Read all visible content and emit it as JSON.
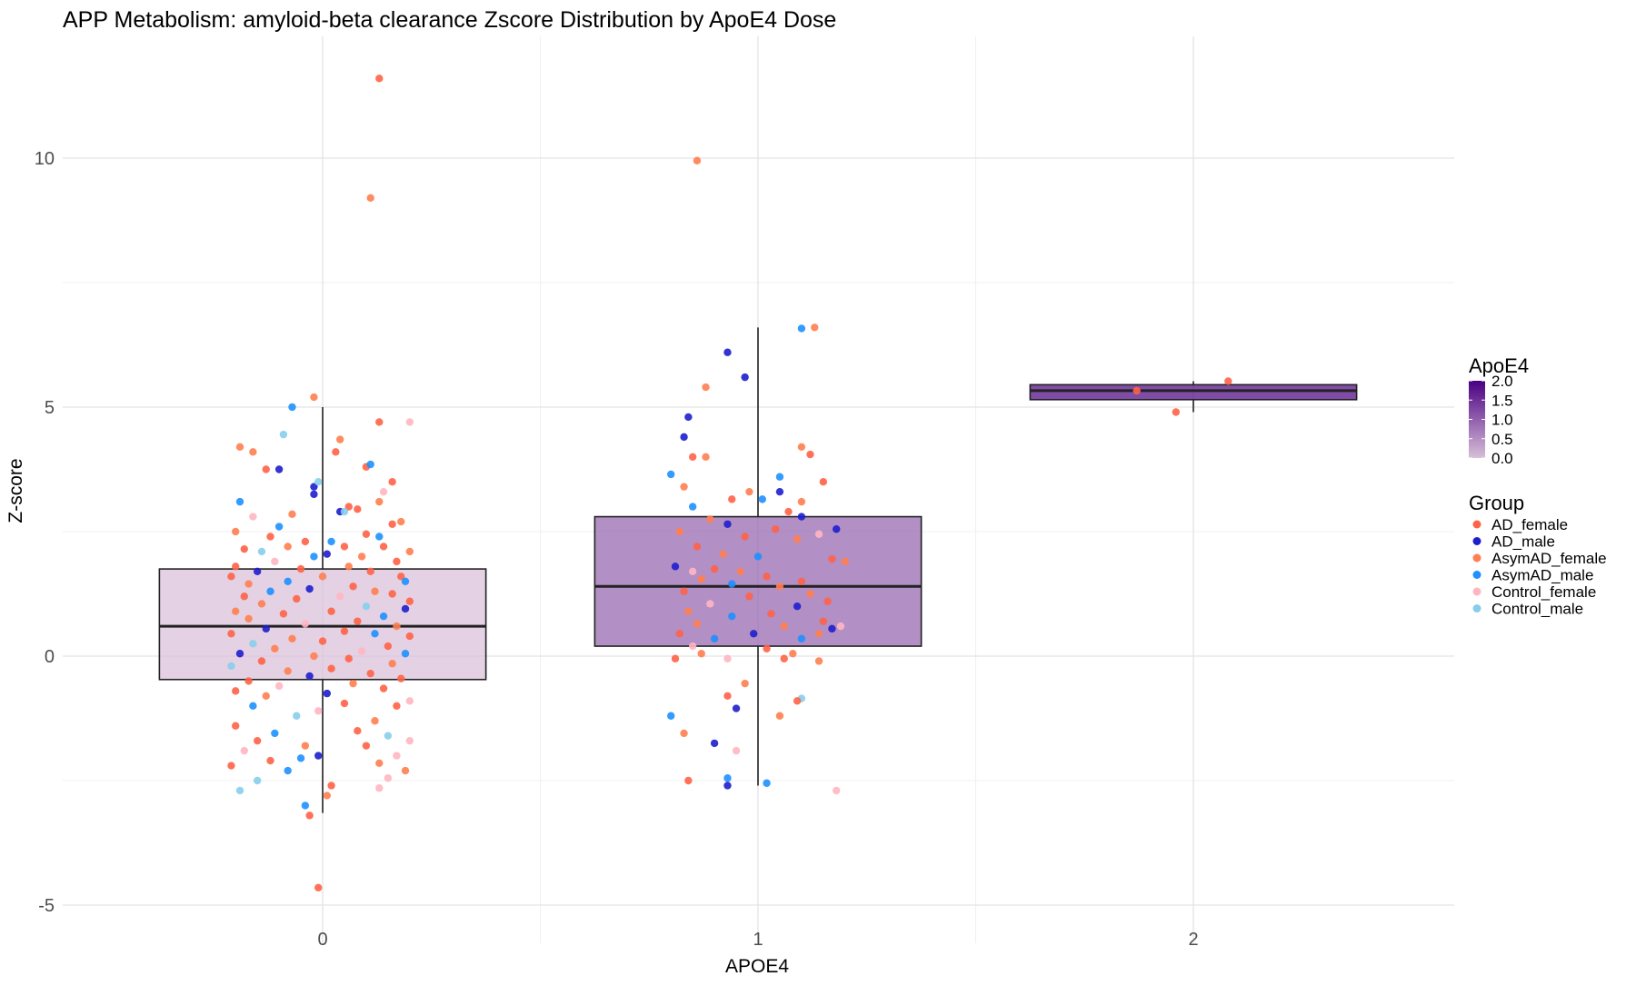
{
  "chart_data": {
    "type": "boxplot+jitter",
    "title": "APP Metabolism: amyloid-beta clearance Zscore Distribution by ApoE4 Dose",
    "xlabel": "APOE4",
    "ylabel": "Z-score",
    "x_categories": [
      "0",
      "1",
      "2"
    ],
    "y_ticks": [
      -5,
      0,
      5,
      10
    ],
    "ylim": [
      -5.6,
      12.3
    ],
    "grid": true,
    "fill_legend": {
      "title": "ApoE4",
      "ticks": [
        "0.0",
        "0.5",
        "1.0",
        "1.5",
        "2.0"
      ],
      "range": [
        0,
        2
      ],
      "low_color": "#D8BFD8",
      "high_color": "#4B0082"
    },
    "color_legend": {
      "title": "Group",
      "entries": [
        {
          "name": "AD_female",
          "color": "#FF6347"
        },
        {
          "name": "AD_male",
          "color": "#1E1ECD"
        },
        {
          "name": "AsymAD_female",
          "color": "#FF7F50"
        },
        {
          "name": "AsymAD_male",
          "color": "#1E90FF"
        },
        {
          "name": "Control_female",
          "color": "#FFB6C1"
        },
        {
          "name": "Control_male",
          "color": "#87CEEB"
        }
      ]
    },
    "boxes": [
      {
        "x": 0,
        "q1": -0.47,
        "median": 0.6,
        "q3": 1.75,
        "whisker_low": -3.15,
        "whisker_high": 5.0
      },
      {
        "x": 1,
        "q1": 0.2,
        "median": 1.4,
        "q3": 2.8,
        "whisker_low": -2.6,
        "whisker_high": 6.6
      },
      {
        "x": 2,
        "q1": 5.15,
        "median": 5.33,
        "q3": 5.45,
        "whisker_low": 4.9,
        "whisker_high": 5.52
      }
    ],
    "points_format": [
      "x",
      "z",
      "group_index"
    ],
    "points": [
      [
        0.13,
        11.6,
        0
      ],
      [
        0.11,
        9.2,
        2
      ],
      [
        -0.02,
        5.2,
        2
      ],
      [
        -0.07,
        5.0,
        3
      ],
      [
        -0.09,
        4.45,
        5
      ],
      [
        0.2,
        4.7,
        4
      ],
      [
        0.13,
        4.7,
        0
      ],
      [
        0.04,
        4.35,
        2
      ],
      [
        -0.19,
        4.2,
        2
      ],
      [
        0.03,
        4.1,
        0
      ],
      [
        -0.16,
        4.1,
        2
      ],
      [
        -0.13,
        3.75,
        0
      ],
      [
        -0.1,
        3.75,
        1
      ],
      [
        0.1,
        3.8,
        0
      ],
      [
        0.11,
        3.85,
        3
      ],
      [
        -0.02,
        3.4,
        1
      ],
      [
        -0.02,
        3.25,
        1
      ],
      [
        0.16,
        3.5,
        0
      ],
      [
        0.14,
        3.3,
        4
      ],
      [
        -0.01,
        3.5,
        5
      ],
      [
        -0.19,
        3.1,
        3
      ],
      [
        0.13,
        3.1,
        2
      ],
      [
        0.06,
        3.0,
        0
      ],
      [
        0.08,
        2.95,
        0
      ],
      [
        0.04,
        2.9,
        1
      ],
      [
        0.05,
        2.9,
        5
      ],
      [
        -0.07,
        2.85,
        2
      ],
      [
        -0.16,
        2.8,
        4
      ],
      [
        0.18,
        2.7,
        2
      ],
      [
        0.16,
        2.65,
        0
      ],
      [
        -0.1,
        2.6,
        3
      ],
      [
        -0.2,
        2.5,
        2
      ],
      [
        0.1,
        2.45,
        0
      ],
      [
        -0.12,
        2.4,
        0
      ],
      [
        0.13,
        2.4,
        3
      ],
      [
        -0.04,
        2.3,
        0
      ],
      [
        0.02,
        2.3,
        3
      ],
      [
        0.2,
        2.1,
        2
      ],
      [
        -0.08,
        2.2,
        2
      ],
      [
        0.05,
        2.2,
        0
      ],
      [
        -0.18,
        2.15,
        0
      ],
      [
        0.14,
        2.2,
        0
      ],
      [
        -0.14,
        2.1,
        5
      ],
      [
        0.01,
        2.05,
        1
      ],
      [
        -0.02,
        2.0,
        3
      ],
      [
        0.09,
        2.0,
        2
      ],
      [
        0.17,
        1.9,
        0
      ],
      [
        -0.11,
        1.9,
        4
      ],
      [
        -0.2,
        1.8,
        0
      ],
      [
        0.06,
        1.8,
        2
      ],
      [
        -0.05,
        1.75,
        0
      ],
      [
        -0.15,
        1.7,
        1
      ],
      [
        0.11,
        1.7,
        0
      ],
      [
        0.18,
        1.6,
        0
      ],
      [
        -0.21,
        1.6,
        0
      ],
      [
        0.0,
        1.6,
        2
      ],
      [
        -0.08,
        1.5,
        3
      ],
      [
        0.19,
        1.5,
        3
      ],
      [
        -0.17,
        1.45,
        2
      ],
      [
        0.07,
        1.4,
        0
      ],
      [
        -0.03,
        1.35,
        1
      ],
      [
        -0.12,
        1.3,
        3
      ],
      [
        0.12,
        1.3,
        2
      ],
      [
        0.16,
        1.25,
        0
      ],
      [
        -0.18,
        1.2,
        0
      ],
      [
        0.04,
        1.2,
        4
      ],
      [
        -0.06,
        1.15,
        0
      ],
      [
        0.2,
        1.1,
        0
      ],
      [
        -0.14,
        1.05,
        2
      ],
      [
        0.1,
        1.0,
        5
      ],
      [
        0.19,
        0.95,
        1
      ],
      [
        -0.2,
        0.9,
        2
      ],
      [
        0.02,
        0.9,
        0
      ],
      [
        -0.09,
        0.85,
        0
      ],
      [
        0.14,
        0.8,
        3
      ],
      [
        -0.17,
        0.75,
        2
      ],
      [
        0.08,
        0.7,
        0
      ],
      [
        -0.04,
        0.65,
        4
      ],
      [
        0.17,
        0.6,
        2
      ],
      [
        -0.13,
        0.55,
        1
      ],
      [
        0.05,
        0.5,
        0
      ],
      [
        -0.21,
        0.45,
        0
      ],
      [
        0.12,
        0.45,
        3
      ],
      [
        0.2,
        0.4,
        0
      ],
      [
        -0.07,
        0.35,
        2
      ],
      [
        0.0,
        0.3,
        0
      ],
      [
        -0.16,
        0.25,
        5
      ],
      [
        0.15,
        0.2,
        0
      ],
      [
        -0.11,
        0.15,
        2
      ],
      [
        0.09,
        0.1,
        4
      ],
      [
        -0.19,
        0.05,
        1
      ],
      [
        0.19,
        0.05,
        3
      ],
      [
        -0.02,
        0.0,
        2
      ],
      [
        0.06,
        -0.05,
        0
      ],
      [
        -0.14,
        -0.1,
        0
      ],
      [
        0.16,
        -0.15,
        2
      ],
      [
        -0.21,
        -0.2,
        5
      ],
      [
        0.02,
        -0.25,
        0
      ],
      [
        -0.08,
        -0.3,
        2
      ],
      [
        0.11,
        -0.35,
        0
      ],
      [
        -0.03,
        -0.4,
        1
      ],
      [
        0.18,
        -0.45,
        0
      ],
      [
        -0.17,
        -0.5,
        0
      ],
      [
        0.07,
        -0.55,
        2
      ],
      [
        -0.1,
        -0.6,
        4
      ],
      [
        0.14,
        -0.65,
        0
      ],
      [
        -0.2,
        -0.7,
        0
      ],
      [
        0.01,
        -0.75,
        1
      ],
      [
        -0.13,
        -0.8,
        2
      ],
      [
        0.2,
        -0.9,
        4
      ],
      [
        0.05,
        -0.95,
        0
      ],
      [
        -0.16,
        -1.0,
        3
      ],
      [
        0.17,
        -1.0,
        0
      ],
      [
        -0.01,
        -1.1,
        4
      ],
      [
        -0.06,
        -1.2,
        5
      ],
      [
        0.12,
        -1.3,
        2
      ],
      [
        -0.2,
        -1.4,
        0
      ],
      [
        0.08,
        -1.5,
        0
      ],
      [
        -0.11,
        -1.55,
        3
      ],
      [
        0.15,
        -1.6,
        5
      ],
      [
        -0.15,
        -1.7,
        0
      ],
      [
        0.2,
        -1.7,
        4
      ],
      [
        -0.04,
        -1.8,
        2
      ],
      [
        0.1,
        -1.8,
        0
      ],
      [
        -0.18,
        -1.9,
        4
      ],
      [
        0.17,
        -2.0,
        4
      ],
      [
        -0.01,
        -2.0,
        1
      ],
      [
        -0.05,
        -2.05,
        3
      ],
      [
        -0.12,
        -2.1,
        0
      ],
      [
        0.13,
        -2.15,
        2
      ],
      [
        -0.21,
        -2.2,
        0
      ],
      [
        -0.08,
        -2.3,
        3
      ],
      [
        0.19,
        -2.3,
        2
      ],
      [
        0.15,
        -2.45,
        4
      ],
      [
        -0.15,
        -2.5,
        5
      ],
      [
        0.02,
        -2.6,
        0
      ],
      [
        -0.19,
        -2.7,
        5
      ],
      [
        0.13,
        -2.65,
        4
      ],
      [
        0.01,
        -2.8,
        2
      ],
      [
        -0.04,
        -3.0,
        3
      ],
      [
        -0.03,
        -3.2,
        0
      ],
      [
        -0.01,
        -4.65,
        0
      ],
      [
        0.86,
        9.95,
        2
      ],
      [
        1.13,
        6.6,
        2
      ],
      [
        1.1,
        6.58,
        3
      ],
      [
        0.93,
        6.1,
        1
      ],
      [
        0.97,
        5.6,
        1
      ],
      [
        0.88,
        5.4,
        2
      ],
      [
        0.84,
        4.8,
        1
      ],
      [
        0.83,
        4.4,
        1
      ],
      [
        1.1,
        4.2,
        2
      ],
      [
        1.12,
        4.05,
        0
      ],
      [
        0.85,
        4.0,
        0
      ],
      [
        0.88,
        4.0,
        2
      ],
      [
        0.8,
        3.65,
        3
      ],
      [
        1.05,
        3.6,
        3
      ],
      [
        0.83,
        3.4,
        2
      ],
      [
        1.15,
        3.5,
        0
      ],
      [
        1.05,
        3.3,
        1
      ],
      [
        0.98,
        3.3,
        2
      ],
      [
        1.1,
        3.1,
        2
      ],
      [
        0.85,
        3.0,
        3
      ],
      [
        0.94,
        3.15,
        0
      ],
      [
        1.01,
        3.15,
        3
      ],
      [
        1.07,
        2.9,
        0
      ],
      [
        0.89,
        2.75,
        2
      ],
      [
        0.93,
        2.65,
        1
      ],
      [
        1.1,
        2.8,
        1
      ],
      [
        1.18,
        2.55,
        1
      ],
      [
        1.04,
        2.55,
        0
      ],
      [
        0.82,
        2.5,
        2
      ],
      [
        1.14,
        2.45,
        4
      ],
      [
        0.97,
        2.4,
        0
      ],
      [
        1.09,
        2.35,
        2
      ],
      [
        0.86,
        2.2,
        0
      ],
      [
        0.92,
        2.05,
        2
      ],
      [
        1.0,
        2.0,
        3
      ],
      [
        1.17,
        1.95,
        0
      ],
      [
        1.2,
        1.9,
        2
      ],
      [
        0.81,
        1.8,
        1
      ],
      [
        0.9,
        1.75,
        0
      ],
      [
        0.96,
        1.7,
        2
      ],
      [
        0.85,
        1.7,
        4
      ],
      [
        1.02,
        1.6,
        0
      ],
      [
        0.87,
        1.55,
        2
      ],
      [
        1.1,
        1.5,
        0
      ],
      [
        0.94,
        1.45,
        3
      ],
      [
        1.05,
        1.4,
        2
      ],
      [
        0.83,
        1.3,
        0
      ],
      [
        1.12,
        1.25,
        2
      ],
      [
        0.98,
        1.2,
        0
      ],
      [
        1.16,
        1.1,
        0
      ],
      [
        0.89,
        1.05,
        4
      ],
      [
        1.09,
        1.0,
        1
      ],
      [
        0.84,
        0.9,
        2
      ],
      [
        1.03,
        0.85,
        0
      ],
      [
        0.94,
        0.8,
        3
      ],
      [
        1.15,
        0.7,
        0
      ],
      [
        0.86,
        0.65,
        2
      ],
      [
        1.19,
        0.6,
        4
      ],
      [
        1.17,
        0.55,
        1
      ],
      [
        1.06,
        0.6,
        2
      ],
      [
        0.82,
        0.45,
        0
      ],
      [
        0.99,
        0.45,
        1
      ],
      [
        1.14,
        0.45,
        2
      ],
      [
        0.9,
        0.35,
        3
      ],
      [
        1.1,
        0.35,
        3
      ],
      [
        0.85,
        0.2,
        4
      ],
      [
        1.02,
        0.15,
        0
      ],
      [
        1.08,
        0.05,
        2
      ],
      [
        0.87,
        0.05,
        2
      ],
      [
        0.81,
        -0.05,
        0
      ],
      [
        1.06,
        -0.05,
        0
      ],
      [
        1.14,
        -0.1,
        2
      ],
      [
        0.93,
        -0.05,
        4
      ],
      [
        0.97,
        -0.55,
        2
      ],
      [
        0.93,
        -0.8,
        0
      ],
      [
        1.1,
        -0.85,
        5
      ],
      [
        1.09,
        -0.9,
        0
      ],
      [
        0.95,
        -1.05,
        1
      ],
      [
        1.05,
        -1.2,
        2
      ],
      [
        0.8,
        -1.2,
        3
      ],
      [
        0.83,
        -1.55,
        2
      ],
      [
        0.9,
        -1.75,
        1
      ],
      [
        0.95,
        -1.9,
        4
      ],
      [
        0.93,
        -2.45,
        3
      ],
      [
        0.84,
        -2.5,
        0
      ],
      [
        1.02,
        -2.55,
        3
      ],
      [
        0.93,
        -2.6,
        1
      ],
      [
        1.18,
        -2.7,
        4
      ],
      [
        1.87,
        5.33,
        0
      ],
      [
        1.96,
        4.9,
        0
      ],
      [
        2.08,
        5.52,
        0
      ]
    ]
  }
}
